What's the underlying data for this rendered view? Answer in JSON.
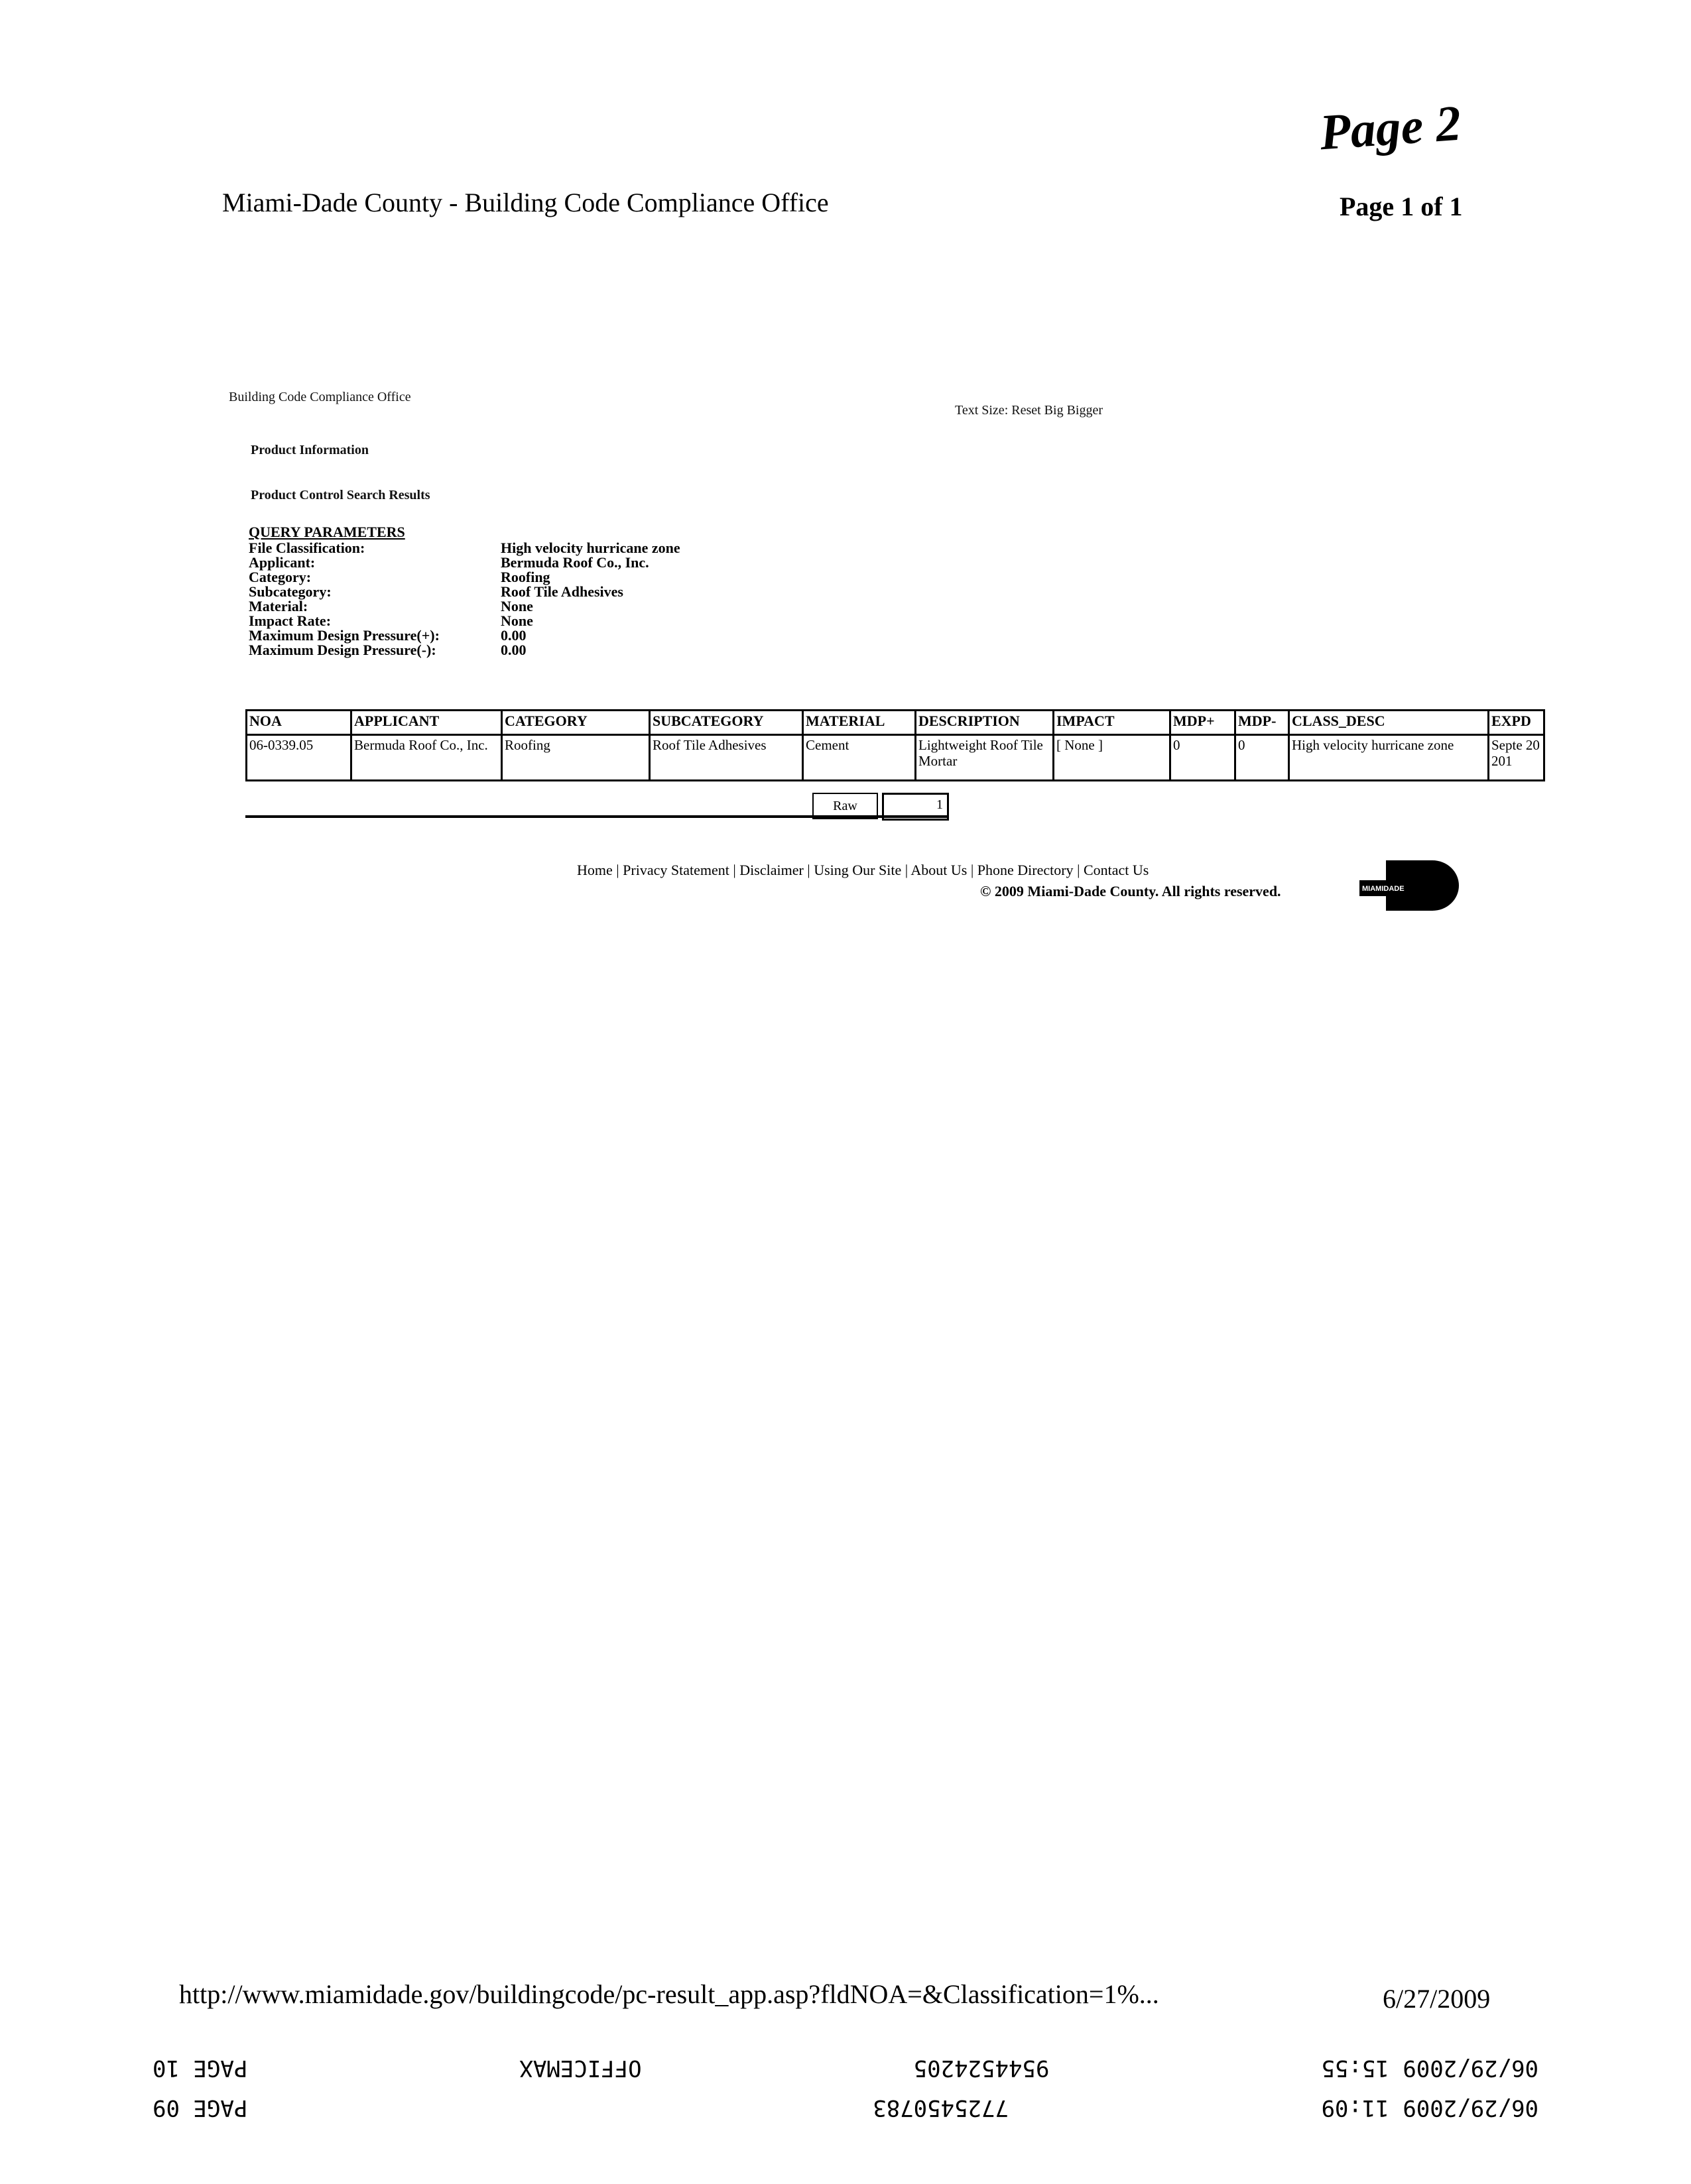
{
  "header": {
    "title": "Miami-Dade County - Building Code Compliance Office",
    "page": "Page 1 of 1",
    "handwritten": "Page 2"
  },
  "site": {
    "office": "Building Code Compliance Office",
    "text_size": "Text Size: Reset Big Bigger",
    "product_info": "Product Information",
    "search_results": "Product Control Search Results"
  },
  "query": {
    "heading": "QUERY PARAMETERS",
    "params": [
      {
        "label": "File Classification:",
        "value": "High velocity hurricane zone"
      },
      {
        "label": "Applicant:",
        "value": "Bermuda Roof Co., Inc."
      },
      {
        "label": "Category:",
        "value": "Roofing"
      },
      {
        "label": "Subcategory:",
        "value": "Roof Tile Adhesives"
      },
      {
        "label": "Material:",
        "value": "None"
      },
      {
        "label": "Impact Rate:",
        "value": "None"
      },
      {
        "label": "Maximum Design Pressure(+):",
        "value": "0.00"
      },
      {
        "label": "Maximum Design Pressure(-):",
        "value": "0.00"
      }
    ]
  },
  "table": {
    "headers": [
      "NOA",
      "APPLICANT",
      "CATEGORY",
      "SUBCATEGORY",
      "MATERIAL",
      "DESCRIPTION",
      "IMPACT",
      "MDP+",
      "MDP-",
      "CLASS_DESC",
      "EXPD"
    ],
    "rows": [
      [
        "06-0339.05",
        "Bermuda Roof Co., Inc.",
        "Roofing",
        "Roof Tile Adhesives",
        "Cement",
        "Lightweight Roof Tile Mortar",
        "[ None ]",
        "0",
        "0",
        "High velocity hurricane zone",
        "Septe 20 201"
      ]
    ],
    "raw_button": "Raw",
    "raw_value": "1"
  },
  "footer": {
    "links": [
      "Home",
      "Privacy Statement",
      "Disclaimer",
      "Using Our Site",
      "About Us",
      "Phone Directory",
      "Contact Us"
    ],
    "copyright": "© 2009 Miami-Dade County. All rights reserved.",
    "logo": "MIAMIDADE COUNTY"
  },
  "print": {
    "url": "http://www.miamidade.gov/buildingcode/pc-result_app.asp?fldNOA=&Classification=1%...",
    "date": "6/27/2009"
  },
  "fax": {
    "line1": [
      "06/29/2009 11:09",
      "7725450783",
      "",
      "PAGE 09"
    ],
    "line2": [
      "06/29/2009 15:55",
      "9544524205",
      "OFFICEMAX",
      "PAGE 10"
    ]
  }
}
